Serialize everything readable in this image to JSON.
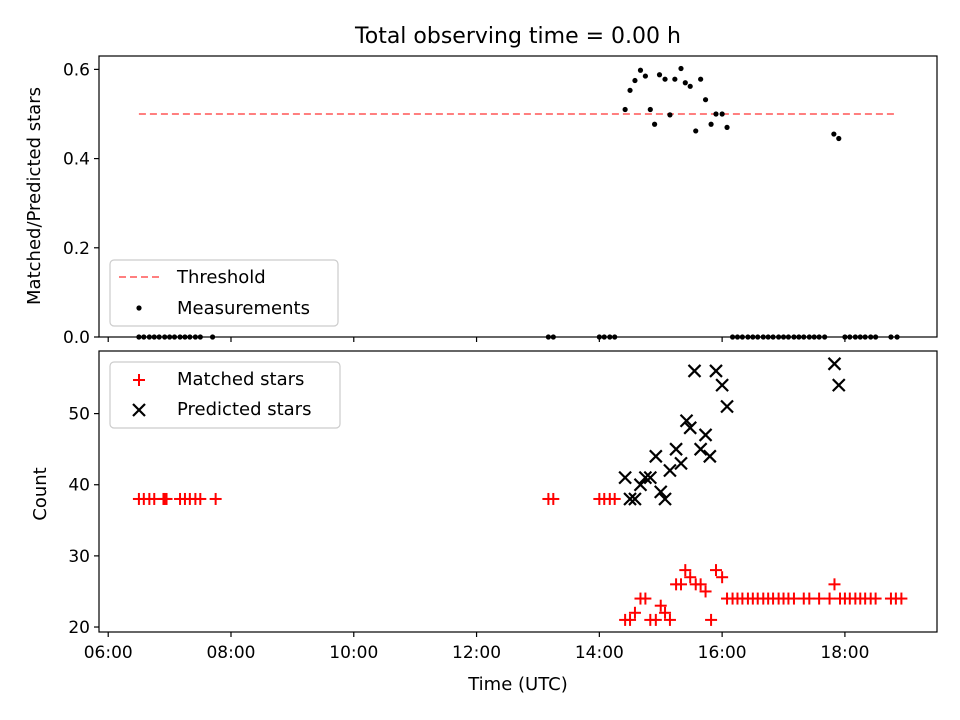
{
  "chart_data": [
    {
      "type": "scatter",
      "title": "Total observing time = 0.00 h",
      "xlabel": "",
      "ylabel": "Matched/Predicted stars",
      "xlim": [
        5.85,
        19.5
      ],
      "ylim": [
        0,
        0.63
      ],
      "xticks": [
        6,
        8,
        10,
        12,
        14,
        16,
        18
      ],
      "yticks": [
        0.0,
        0.2,
        0.4,
        0.6
      ],
      "ytick_labels": [
        "0.0",
        "0.2",
        "0.4",
        "0.6"
      ],
      "legend_position": "lower-left",
      "threshold": {
        "name": "Threshold",
        "y": 0.5,
        "x_range": [
          6.5,
          18.85
        ],
        "color": "#ff7f7f",
        "style": "dashed"
      },
      "series": [
        {
          "name": "Measurements",
          "marker": "dot",
          "color": "#000000",
          "points": [
            [
              14.42,
              0.51
            ],
            [
              14.5,
              0.553
            ],
            [
              14.58,
              0.575
            ],
            [
              14.67,
              0.598
            ],
            [
              14.75,
              0.585
            ],
            [
              14.83,
              0.51
            ],
            [
              14.9,
              0.477
            ],
            [
              14.98,
              0.588
            ],
            [
              15.07,
              0.578
            ],
            [
              15.15,
              0.498
            ],
            [
              15.23,
              0.578
            ],
            [
              15.33,
              0.602
            ],
            [
              15.4,
              0.57
            ],
            [
              15.48,
              0.562
            ],
            [
              15.57,
              0.462
            ],
            [
              15.65,
              0.578
            ],
            [
              15.73,
              0.532
            ],
            [
              15.82,
              0.477
            ],
            [
              15.9,
              0.5
            ],
            [
              16.0,
              0.5
            ],
            [
              16.08,
              0.47
            ],
            [
              17.82,
              0.455
            ],
            [
              17.9,
              0.445
            ],
            [
              6.5,
              0.0
            ],
            [
              6.58,
              0.0
            ],
            [
              6.67,
              0.0
            ],
            [
              6.75,
              0.0
            ],
            [
              6.83,
              0.0
            ],
            [
              6.92,
              0.0
            ],
            [
              7.0,
              0.0
            ],
            [
              7.08,
              0.0
            ],
            [
              7.17,
              0.0
            ],
            [
              7.25,
              0.0
            ],
            [
              7.33,
              0.0
            ],
            [
              7.42,
              0.0
            ],
            [
              7.5,
              0.0
            ],
            [
              7.7,
              0.0
            ],
            [
              13.17,
              0.0
            ],
            [
              13.25,
              0.0
            ],
            [
              14.0,
              0.0
            ],
            [
              14.08,
              0.0
            ],
            [
              14.17,
              0.0
            ],
            [
              14.25,
              0.0
            ],
            [
              16.17,
              0.0
            ],
            [
              16.25,
              0.0
            ],
            [
              16.33,
              0.0
            ],
            [
              16.42,
              0.0
            ],
            [
              16.5,
              0.0
            ],
            [
              16.58,
              0.0
            ],
            [
              16.67,
              0.0
            ],
            [
              16.75,
              0.0
            ],
            [
              16.83,
              0.0
            ],
            [
              16.92,
              0.0
            ],
            [
              17.0,
              0.0
            ],
            [
              17.08,
              0.0
            ],
            [
              17.17,
              0.0
            ],
            [
              17.25,
              0.0
            ],
            [
              17.33,
              0.0
            ],
            [
              17.42,
              0.0
            ],
            [
              17.5,
              0.0
            ],
            [
              17.58,
              0.0
            ],
            [
              17.67,
              0.0
            ],
            [
              18.0,
              0.0
            ],
            [
              18.08,
              0.0
            ],
            [
              18.17,
              0.0
            ],
            [
              18.25,
              0.0
            ],
            [
              18.33,
              0.0
            ],
            [
              18.42,
              0.0
            ],
            [
              18.5,
              0.0
            ],
            [
              18.75,
              0.0
            ],
            [
              18.85,
              0.0
            ]
          ]
        }
      ]
    },
    {
      "type": "scatter",
      "title": "",
      "xlabel": "Time (UTC)",
      "ylabel": "Count",
      "xlim": [
        5.85,
        19.5
      ],
      "ylim": [
        19.3,
        58.8
      ],
      "xticks": [
        6,
        8,
        10,
        12,
        14,
        16,
        18
      ],
      "xtick_labels": [
        "06:00",
        "08:00",
        "10:00",
        "12:00",
        "14:00",
        "16:00",
        "18:00"
      ],
      "yticks": [
        20,
        30,
        40,
        50
      ],
      "ytick_labels": [
        "20",
        "30",
        "40",
        "50"
      ],
      "legend_position": "upper-left",
      "series": [
        {
          "name": "Matched stars",
          "marker": "plus",
          "color": "#ff0000",
          "points": [
            [
              6.5,
              38
            ],
            [
              6.58,
              38
            ],
            [
              6.67,
              38
            ],
            [
              6.75,
              38
            ],
            [
              6.9,
              38
            ],
            [
              6.92,
              38
            ],
            [
              6.95,
              38
            ],
            [
              7.17,
              38
            ],
            [
              7.25,
              38
            ],
            [
              7.33,
              38
            ],
            [
              7.42,
              38
            ],
            [
              7.5,
              38
            ],
            [
              7.75,
              38
            ],
            [
              13.17,
              38
            ],
            [
              13.25,
              38
            ],
            [
              14.0,
              38
            ],
            [
              14.08,
              38
            ],
            [
              14.17,
              38
            ],
            [
              14.25,
              38
            ],
            [
              14.42,
              21
            ],
            [
              14.5,
              21
            ],
            [
              14.58,
              22
            ],
            [
              14.67,
              24
            ],
            [
              14.75,
              24
            ],
            [
              14.83,
              21
            ],
            [
              14.92,
              21
            ],
            [
              15.0,
              23
            ],
            [
              15.07,
              22
            ],
            [
              15.15,
              21
            ],
            [
              15.25,
              26
            ],
            [
              15.33,
              26
            ],
            [
              15.4,
              28
            ],
            [
              15.48,
              27
            ],
            [
              15.57,
              26
            ],
            [
              15.65,
              26
            ],
            [
              15.73,
              25
            ],
            [
              15.82,
              21
            ],
            [
              15.9,
              28
            ],
            [
              16.0,
              27
            ],
            [
              16.08,
              24
            ],
            [
              16.17,
              24
            ],
            [
              16.25,
              24
            ],
            [
              16.33,
              24
            ],
            [
              16.42,
              24
            ],
            [
              16.5,
              24
            ],
            [
              16.58,
              24
            ],
            [
              16.67,
              24
            ],
            [
              16.75,
              24
            ],
            [
              16.83,
              24
            ],
            [
              16.92,
              24
            ],
            [
              17.0,
              24
            ],
            [
              17.08,
              24
            ],
            [
              17.17,
              24
            ],
            [
              17.33,
              24
            ],
            [
              17.42,
              24
            ],
            [
              17.58,
              24
            ],
            [
              17.75,
              24
            ],
            [
              17.83,
              26
            ],
            [
              17.92,
              24
            ],
            [
              18.0,
              24
            ],
            [
              18.08,
              24
            ],
            [
              18.17,
              24
            ],
            [
              18.25,
              24
            ],
            [
              18.33,
              24
            ],
            [
              18.42,
              24
            ],
            [
              18.5,
              24
            ],
            [
              18.75,
              24
            ],
            [
              18.83,
              24
            ],
            [
              18.92,
              24
            ]
          ]
        },
        {
          "name": "Predicted stars",
          "marker": "x",
          "color": "#000000",
          "points": [
            [
              14.42,
              41
            ],
            [
              14.5,
              38
            ],
            [
              14.58,
              38
            ],
            [
              14.67,
              40
            ],
            [
              14.75,
              41
            ],
            [
              14.83,
              41
            ],
            [
              14.92,
              44
            ],
            [
              15.0,
              39
            ],
            [
              15.07,
              38
            ],
            [
              15.15,
              42
            ],
            [
              15.25,
              45
            ],
            [
              15.33,
              43
            ],
            [
              15.42,
              49
            ],
            [
              15.48,
              48
            ],
            [
              15.55,
              56
            ],
            [
              15.65,
              45
            ],
            [
              15.73,
              47
            ],
            [
              15.8,
              44
            ],
            [
              15.9,
              56
            ],
            [
              16.0,
              54
            ],
            [
              16.08,
              51
            ],
            [
              17.83,
              57
            ],
            [
              17.9,
              54
            ]
          ]
        }
      ]
    }
  ]
}
